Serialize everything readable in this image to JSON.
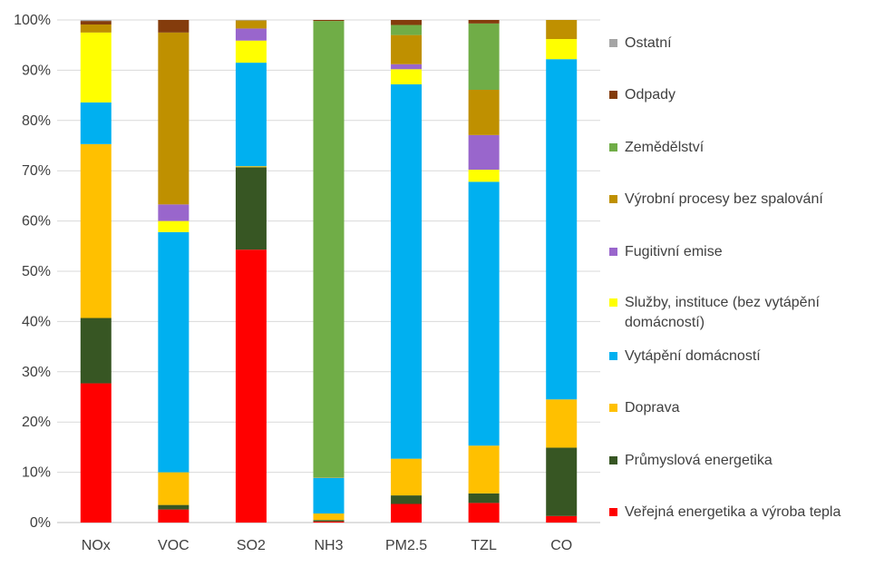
{
  "chart_data": {
    "type": "bar",
    "stacked": true,
    "percent": true,
    "title": "",
    "xlabel": "",
    "ylabel": "",
    "ylim": [
      0,
      100
    ],
    "yticks": [
      "0%",
      "10%",
      "20%",
      "30%",
      "40%",
      "50%",
      "60%",
      "70%",
      "80%",
      "90%",
      "100%"
    ],
    "categories": [
      "NOx",
      "VOC",
      "SO2",
      "NH3",
      "PM2.5",
      "TZL",
      "CO"
    ],
    "series": [
      {
        "name": "Veřejná energetika a výroba tepla",
        "color": "#ff0000",
        "values": [
          27.7,
          2.6,
          54.3,
          0.2,
          3.7,
          3.9,
          1.3
        ]
      },
      {
        "name": "Průmyslová energetika",
        "color": "#375623",
        "values": [
          13.0,
          0.9,
          16.4,
          0.3,
          1.7,
          1.9,
          13.6
        ]
      },
      {
        "name": "Doprava",
        "color": "#ffc000",
        "values": [
          34.6,
          6.5,
          0.2,
          1.3,
          7.3,
          9.5,
          9.6
        ]
      },
      {
        "name": "Vytápění domácností",
        "color": "#00b0f0",
        "values": [
          8.3,
          47.8,
          20.6,
          7.1,
          74.5,
          52.5,
          67.7
        ]
      },
      {
        "name": "Služby, instituce (bez vytápění domácností)",
        "color": "#ffff00",
        "values": [
          13.9,
          2.2,
          4.4,
          0.0,
          3.0,
          2.4,
          4.0
        ]
      },
      {
        "name": "Fugitivní emise",
        "color": "#9966cc",
        "values": [
          0.0,
          3.3,
          2.4,
          0.0,
          1.0,
          6.9,
          0.0
        ]
      },
      {
        "name": "Výrobní procesy bez spalování",
        "color": "#bf9000",
        "values": [
          1.6,
          34.2,
          1.6,
          0.1,
          5.8,
          9.0,
          3.8
        ]
      },
      {
        "name": "Zemědělství",
        "color": "#70ad47",
        "values": [
          0.0,
          0.0,
          0.0,
          90.8,
          2.0,
          13.2,
          0.0
        ]
      },
      {
        "name": "Odpady",
        "color": "#843c0c",
        "values": [
          0.7,
          2.5,
          0.0,
          0.2,
          1.0,
          0.7,
          0.0
        ]
      },
      {
        "name": "Ostatní",
        "color": "#a5a5a5",
        "values": [
          0.2,
          0.0,
          0.1,
          0.0,
          0.0,
          0.0,
          0.0
        ]
      }
    ],
    "legend_position": "right",
    "legend_order": [
      "Ostatní",
      "Odpady",
      "Zemědělství",
      "Výrobní procesy bez spalování",
      "Fugitivní emise",
      "Služby, instituce (bez vytápění domácností)",
      "Vytápění domácností",
      "Doprava",
      "Průmyslová energetika",
      "Veřejná energetika a výroba tepla"
    ],
    "grid": true,
    "gridline_color": "#d9d9d9",
    "axis_color": "#bfbfbf"
  }
}
